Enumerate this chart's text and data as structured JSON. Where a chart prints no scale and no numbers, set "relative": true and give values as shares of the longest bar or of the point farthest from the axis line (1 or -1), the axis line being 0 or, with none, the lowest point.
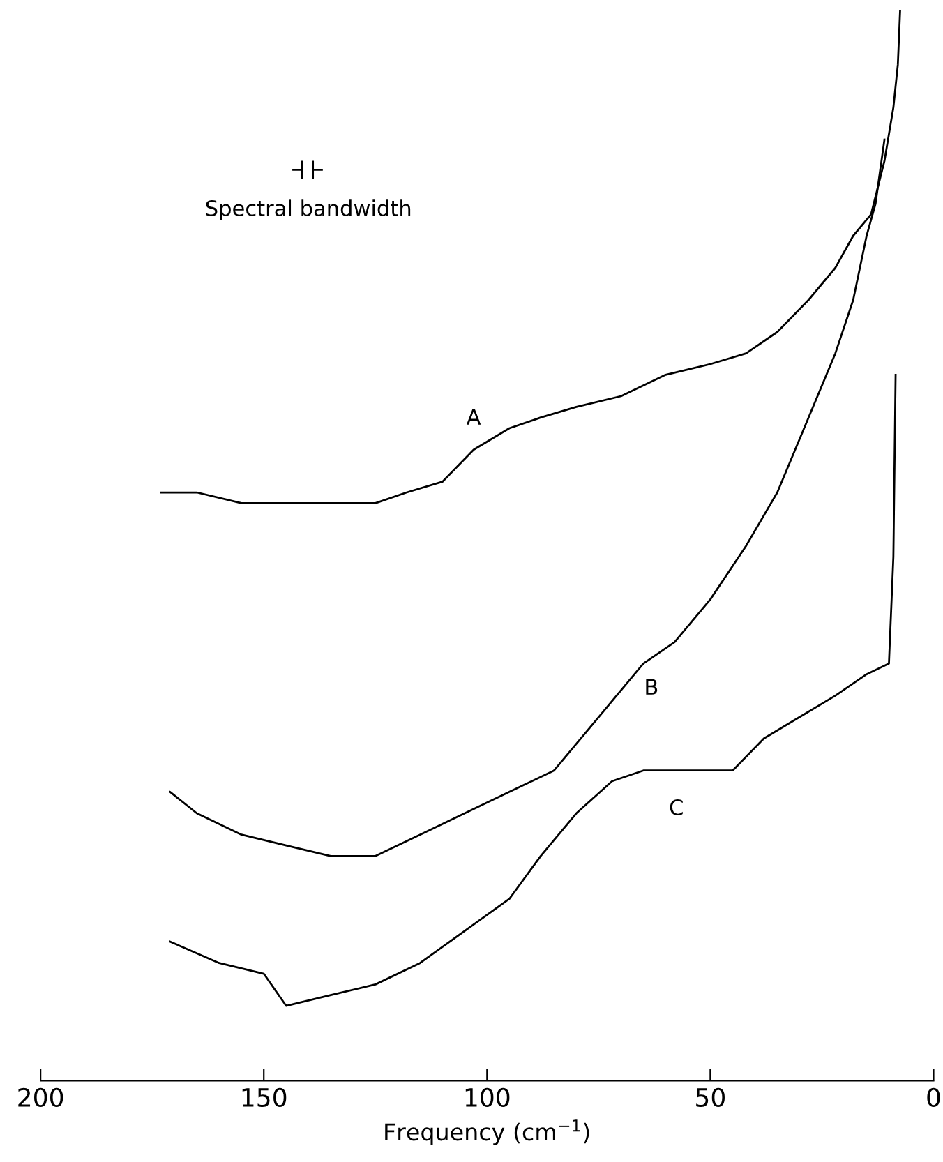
{
  "chart_data": {
    "type": "line",
    "relative": true,
    "xlabel": "Frequency (cm$^{−1}$)",
    "xlim": [
      200,
      0
    ],
    "xticks": [
      200,
      150,
      100,
      50,
      0
    ],
    "tick_labels": "x",
    "grid": false,
    "legend": false,
    "annotations": [
      "Spectral bandwidth"
    ],
    "series": [
      {
        "name": "A",
        "color": "#000000",
        "x": [
          173,
          165,
          155,
          145,
          138,
          130,
          125,
          118,
          110,
          103,
          95,
          88,
          80,
          70,
          60,
          50,
          42,
          35,
          28,
          22,
          18,
          14,
          11,
          9,
          8,
          7.5
        ],
        "values": [
          0.55,
          0.55,
          0.54,
          0.54,
          0.54,
          0.54,
          0.54,
          0.55,
          0.56,
          0.59,
          0.61,
          0.62,
          0.63,
          0.64,
          0.66,
          0.67,
          0.68,
          0.7,
          0.73,
          0.76,
          0.79,
          0.81,
          0.86,
          0.91,
          0.95,
          1
        ]
      },
      {
        "name": "B",
        "color": "#000000",
        "x": [
          171,
          165,
          155,
          145,
          135,
          125,
          115,
          105,
          95,
          85,
          75,
          65,
          58,
          50,
          42,
          35,
          28,
          22,
          18,
          15,
          13,
          11
        ],
        "values": [
          0.27,
          0.25,
          0.23,
          0.22,
          0.21,
          0.21,
          0.23,
          0.25,
          0.27,
          0.29,
          0.34,
          0.39,
          0.41,
          0.45,
          0.5,
          0.55,
          0.62,
          0.68,
          0.73,
          0.79,
          0.82,
          0.88
        ]
      },
      {
        "name": "C",
        "color": "#000000",
        "x": [
          171,
          160,
          150,
          145,
          135,
          125,
          115,
          105,
          95,
          88,
          80,
          72,
          65,
          55,
          45,
          38,
          30,
          22,
          15,
          10,
          9,
          8.5
        ],
        "values": [
          0.13,
          0.11,
          0.1,
          0.07,
          0.08,
          0.09,
          0.11,
          0.14,
          0.17,
          0.21,
          0.25,
          0.28,
          0.29,
          0.29,
          0.29,
          0.32,
          0.34,
          0.36,
          0.38,
          0.39,
          0.49,
          0.66
        ]
      }
    ]
  }
}
